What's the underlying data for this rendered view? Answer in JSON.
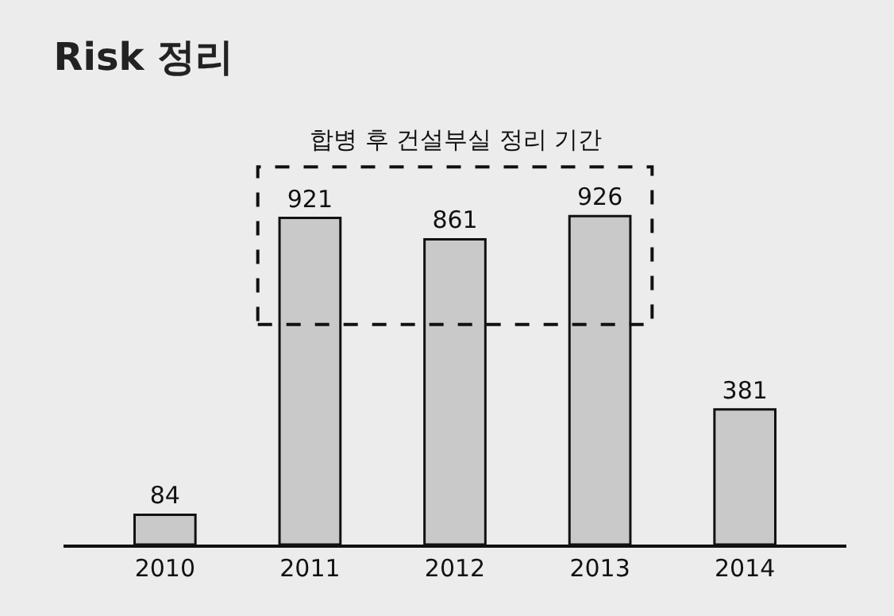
{
  "chart_data": {
    "type": "bar",
    "title": "Risk 정리",
    "categories": [
      "2010",
      "2011",
      "2012",
      "2013",
      "2014"
    ],
    "values": [
      84,
      921,
      861,
      926,
      381
    ],
    "color": "#c9c9c9",
    "data_labels": true,
    "annotations": [
      "합병 후 건설부실 정리 기간"
    ]
  }
}
